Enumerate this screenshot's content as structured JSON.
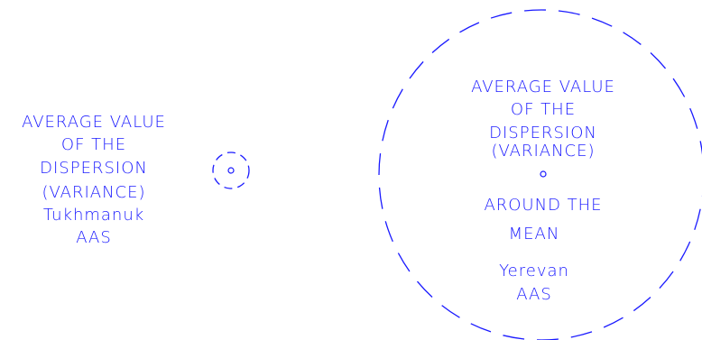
{
  "left_label": {
    "lines": [
      "AVERAGE VALUE",
      "OF THE",
      "DISPERSION",
      "(VARIANCE)",
      "Tukhmanuk",
      "AAS"
    ]
  },
  "right_label": {
    "title_lines": [
      "AVERAGE VALUE",
      "OF THE",
      "DISPERSION",
      "(VARIANCE)"
    ],
    "around_lines": [
      "AROUND THE",
      "MEAN"
    ],
    "site_lines": [
      "Yerevan",
      "AAS"
    ]
  },
  "colors": {
    "line": "#1a1aff",
    "background": "#ffffff"
  }
}
